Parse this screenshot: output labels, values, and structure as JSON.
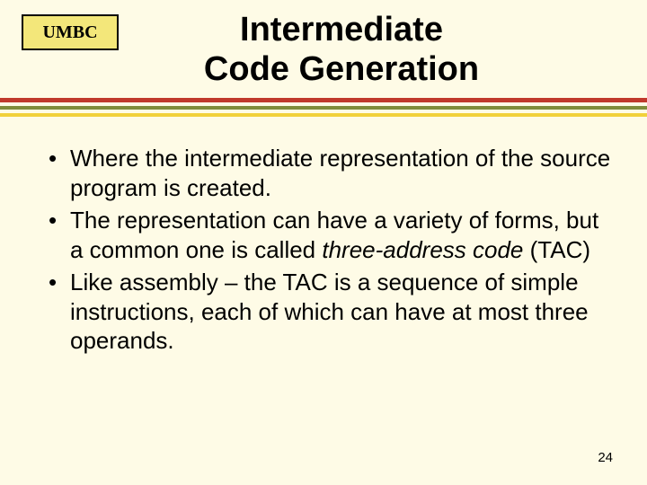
{
  "header": {
    "logo": "UMBC",
    "title_line1": "Intermediate",
    "title_line2": "Code Generation"
  },
  "divider": {
    "rule1_color": "#c0392b",
    "rule2_color": "#7f8c3a",
    "rule3_color": "#f1d13b"
  },
  "bullets": [
    {
      "pre": "Where the intermediate representation of the source program is created.",
      "italic": "",
      "post": ""
    },
    {
      "pre": "The representation can have a variety of forms, but a common one is called ",
      "italic": "three-address code",
      "post": " (TAC)"
    },
    {
      "pre": "Like assembly – the TAC is a sequence of simple instructions, each of which can have at most three operands.",
      "italic": "",
      "post": ""
    }
  ],
  "page_number": "24",
  "colors": {
    "background": "#fefbe6",
    "logo_bg": "#f3e77a",
    "text": "#000000"
  }
}
